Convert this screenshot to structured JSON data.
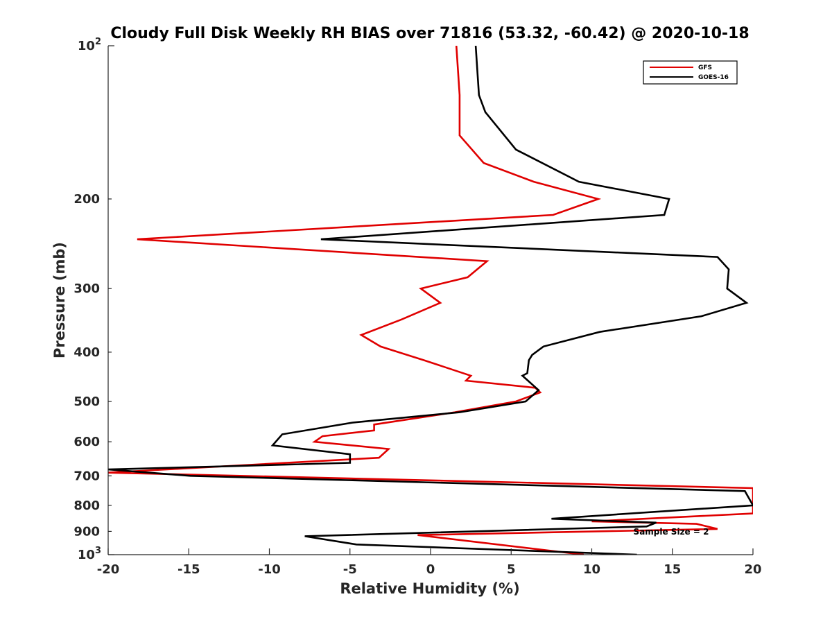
{
  "chart_data": {
    "type": "line",
    "title": "Cloudy Full Disk Weekly RH BIAS over 71816 (53.32, -60.42) @ 2020-10-18",
    "xlabel": "Relative Humidity (%)",
    "ylabel": "Pressure (mb)",
    "xlim": [
      -20,
      20
    ],
    "ylim": [
      100,
      1000
    ],
    "y_scale": "log",
    "y_reversed": true,
    "x_ticks": [
      -20,
      -15,
      -10,
      -5,
      0,
      5,
      10,
      15,
      20
    ],
    "x_tick_labels": [
      "-20",
      "-15",
      "-10",
      "-5",
      "0",
      "5",
      "10",
      "15",
      "20"
    ],
    "y_ticks": [
      200,
      300,
      400,
      500,
      600,
      700,
      800,
      900
    ],
    "y_tick_labels": [
      "200",
      "300",
      "400",
      "500",
      "600",
      "700",
      "800",
      "900"
    ],
    "y_major_tick_labels": [
      {
        "value": 100,
        "base": "10",
        "exp": "2"
      },
      {
        "value": 1000,
        "base": "10",
        "exp": "3"
      }
    ],
    "grid": false,
    "legend_position": "top-right",
    "series": [
      {
        "name": "GFS",
        "color": "#e00000",
        "x": [
          1.6,
          1.8,
          1.8,
          3.3,
          6.4,
          10.4,
          7.6,
          -18.2,
          3.5,
          2.3,
          -0.6,
          0.6,
          -1.8,
          -4.3,
          -3.1,
          -0.4,
          2.5,
          2.2,
          6.5,
          6.8,
          5.3,
          1.5,
          -3.5,
          -3.5,
          -6.7,
          -7.2,
          -2.6,
          -3.2,
          -20.0,
          20.0,
          20.0,
          10.0,
          16.5,
          17.8,
          -0.8,
          9.5
        ],
        "y": [
          100,
          125,
          150,
          170,
          185,
          200,
          215,
          240,
          265,
          285,
          300,
          320,
          345,
          370,
          390,
          415,
          445,
          455,
          470,
          480,
          500,
          525,
          555,
          570,
          585,
          600,
          620,
          645,
          690,
          740,
          830,
          860,
          870,
          890,
          915,
          1000
        ]
      },
      {
        "name": "GOES-16",
        "color": "#000000",
        "x": [
          2.8,
          3.0,
          3.4,
          5.3,
          9.2,
          14.8,
          14.5,
          -6.8,
          17.8,
          18.5,
          18.4,
          19.6,
          16.8,
          10.5,
          7.0,
          6.3,
          6.1,
          6.0,
          5.7,
          6.7,
          5.9,
          1.8,
          -4.8,
          -9.2,
          -9.8,
          -5.0,
          -5.0,
          -12.3,
          -20.0,
          -14.9,
          19.5,
          20.0,
          7.5,
          14.0,
          13.4,
          -7.8,
          -4.6,
          12.8
        ],
        "y": [
          100,
          125,
          135,
          160,
          185,
          200,
          215,
          240,
          260,
          275,
          300,
          320,
          340,
          365,
          390,
          405,
          415,
          440,
          445,
          475,
          500,
          525,
          550,
          580,
          610,
          635,
          660,
          670,
          680,
          700,
          750,
          800,
          850,
          865,
          880,
          920,
          955,
          1000
        ]
      }
    ],
    "annotations": [
      "Sample Size = 2"
    ]
  }
}
